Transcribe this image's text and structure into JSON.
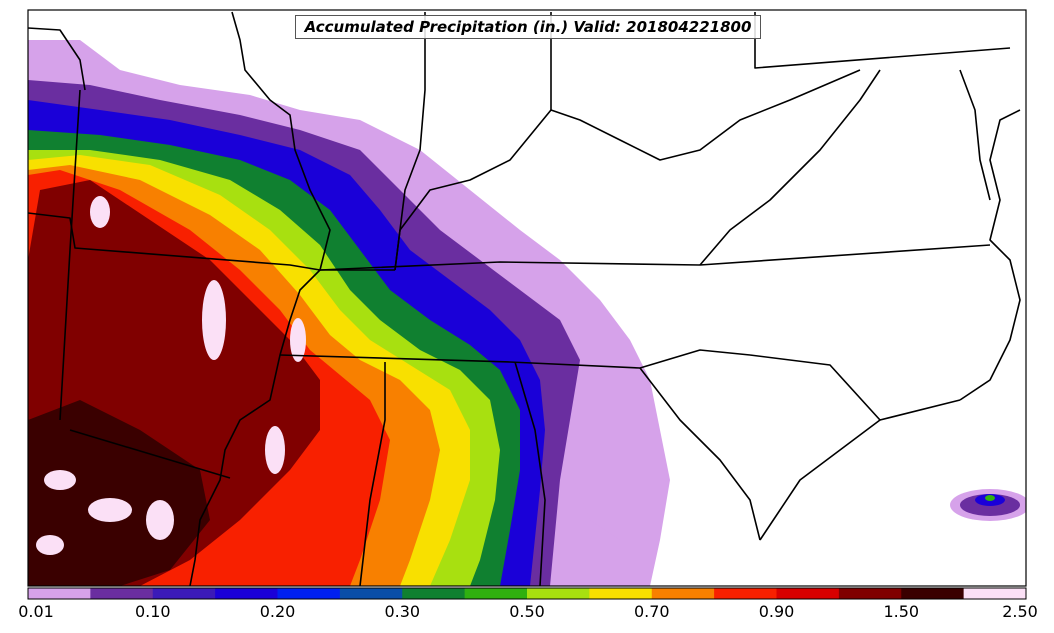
{
  "title": "Accumulated Precipitation (in.) Valid: 201804221800",
  "colorbar": {
    "colors": [
      "#d6a2ea",
      "#6a2ea0",
      "#3b1ab8",
      "#1a00d8",
      "#0020f0",
      "#0a4ea8",
      "#108030",
      "#30b010",
      "#a8e010",
      "#f8e000",
      "#f88000",
      "#f82000",
      "#d80000",
      "#800000",
      "#3a0000",
      "#fbe0f6"
    ],
    "tick_labels": [
      "0.01",
      "0.10",
      "0.20",
      "0.30",
      "0.50",
      "0.70",
      "0.90",
      "1.50",
      "2.50"
    ]
  }
}
